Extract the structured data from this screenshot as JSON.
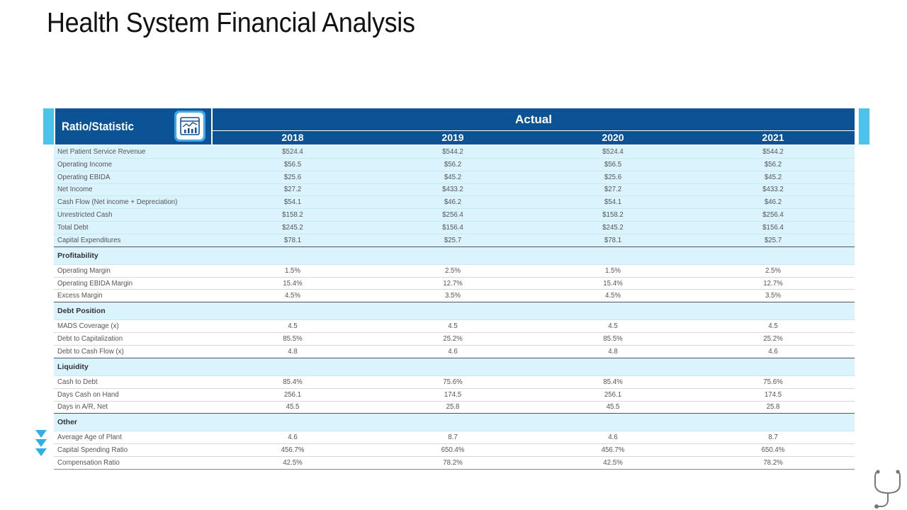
{
  "title": "Health System Financial Analysis",
  "header": {
    "ratio_label": "Ratio/Statistic",
    "group_label": "Actual",
    "years": [
      "2018",
      "2019",
      "2020",
      "2021"
    ]
  },
  "colors": {
    "header_bg": "#0c5395",
    "accent": "#4cc3ea",
    "row_tint": "#daf3fc"
  },
  "icons": {
    "header_icon": "report-chart-icon",
    "decor_icon": "stethoscope-icon",
    "arrows_icon": "chevron-down-icon"
  },
  "rows": [
    {
      "type": "metric",
      "label": "Net Patient Service Revenue",
      "values": [
        "$524.4",
        "$544.2",
        "$524.4",
        "$544.2"
      ]
    },
    {
      "type": "metric",
      "label": "Operating Income",
      "values": [
        "$56.5",
        "$56.2",
        "$56.5",
        "$56.2"
      ]
    },
    {
      "type": "metric",
      "label": "Operating EBIDA",
      "values": [
        "$25.6",
        "$45.2",
        "$25.6",
        "$45.2"
      ]
    },
    {
      "type": "metric",
      "label": "Net Income",
      "values": [
        "$27.2",
        "$433.2",
        "$27.2",
        "$433.2"
      ]
    },
    {
      "type": "metric",
      "label": "Cash Flow (Net income + Depreciation)",
      "values": [
        "$54.1",
        "$46.2",
        "$54.1",
        "$46.2"
      ]
    },
    {
      "type": "metric",
      "label": "Unrestricted Cash",
      "values": [
        "$158.2",
        "$256.4",
        "$158.2",
        "$256.4"
      ]
    },
    {
      "type": "metric",
      "label": "Total Debt",
      "values": [
        "$245.2",
        "$156.4",
        "$245.2",
        "$156.4"
      ]
    },
    {
      "type": "metric",
      "label": "Capital Expenditures",
      "values": [
        "$78.1",
        "$25.7",
        "$78.1",
        "$25.7"
      ]
    },
    {
      "type": "section",
      "label": "Profitability"
    },
    {
      "type": "metric",
      "label": "Operating Margin",
      "values": [
        "1.5%",
        "2.5%",
        "1.5%",
        "2.5%"
      ]
    },
    {
      "type": "metric",
      "label": "Operating EBIDA Margin",
      "values": [
        "15.4%",
        "12.7%",
        "15.4%",
        "12.7%"
      ]
    },
    {
      "type": "metric",
      "label": "Excess Margin",
      "values": [
        "4.5%",
        "3.5%",
        "4.5%",
        "3.5%"
      ]
    },
    {
      "type": "section",
      "label": "Debt Position"
    },
    {
      "type": "metric",
      "label": "MADS Coverage (x)",
      "values": [
        "4.5",
        "4.5",
        "4.5",
        "4.5"
      ]
    },
    {
      "type": "metric",
      "label": "Debt to Capitalization",
      "values": [
        "85.5%",
        "25.2%",
        "85.5%",
        "25.2%"
      ]
    },
    {
      "type": "metric",
      "label": "Debt to Cash Flow (x)",
      "values": [
        "4.8",
        "4.6",
        "4.8",
        "4.6"
      ]
    },
    {
      "type": "section",
      "label": "Liquidity"
    },
    {
      "type": "metric",
      "label": "Cash to Debt",
      "values": [
        "85.4%",
        "75.6%",
        "85.4%",
        "75.6%"
      ]
    },
    {
      "type": "metric",
      "label": "Days Cash on Hand",
      "values": [
        "256.1",
        "174.5",
        "256.1",
        "174.5"
      ]
    },
    {
      "type": "metric",
      "label": "Days in A/R, Net",
      "values": [
        "45.5",
        "25.8",
        "45.5",
        "25.8"
      ]
    },
    {
      "type": "section",
      "label": "Other"
    },
    {
      "type": "metric",
      "label": "Average Age of Plant",
      "values": [
        "4.6",
        "8.7",
        "4.6",
        "8.7"
      ]
    },
    {
      "type": "metric",
      "label": "Capital Spending Ratio",
      "values": [
        "456.7%",
        "650.4%",
        "456.7%",
        "650.4%"
      ]
    },
    {
      "type": "metric",
      "label": "Compensation Ratio",
      "values": [
        "42.5%",
        "78.2%",
        "42.5%",
        "78.2%"
      ]
    }
  ]
}
